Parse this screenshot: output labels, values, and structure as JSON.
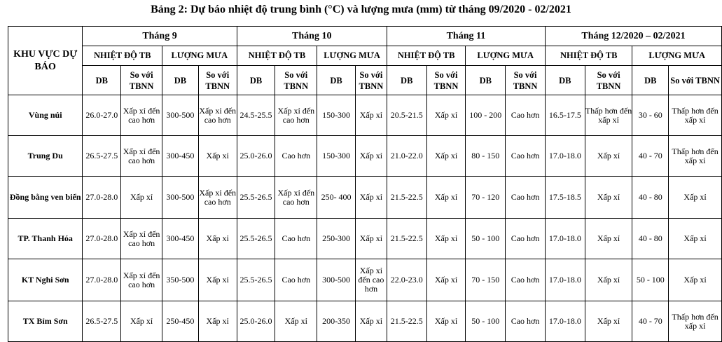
{
  "title": "Bảng 2: Dự báo nhiệt độ trung bình (°C) và lượng mưa (mm) từ tháng 09/2020 - 02/2021",
  "headers": {
    "region": "KHU VỰC DỰ BÁO",
    "periods": [
      "Tháng 9",
      "Tháng 10",
      "Tháng 11",
      "Tháng 12/2020 – 02/2021"
    ],
    "temp": "NHIỆT ĐỘ TB",
    "rain": "LƯỢNG MƯA",
    "db": "DB",
    "compare": "So với TBNN"
  },
  "rows": [
    {
      "region": "Vùng núi",
      "cells": [
        "26.0-27.0",
        "Xấp xỉ đến cao hơn",
        "300-500",
        "Xấp xỉ đến cao hơn",
        "24.5-25.5",
        "Xấp xỉ đến cao hơn",
        "150-300",
        "Xấp xỉ",
        "20.5-21.5",
        "Xấp xỉ",
        "100 - 200",
        "Cao hơn",
        "16.5-17.5",
        "Thấp hơn đến xấp xỉ",
        "30 - 60",
        "Thấp hơn đến xấp xỉ"
      ]
    },
    {
      "region": "Trung Du",
      "cells": [
        "26.5-27.5",
        "Xấp xỉ đến cao hơn",
        "300-450",
        "Xấp xỉ",
        "25.0-26.0",
        "Cao hơn",
        "150-300",
        "Xấp xỉ",
        "21.0-22.0",
        "Xấp xỉ",
        "80 - 150",
        "Cao hơn",
        "17.0-18.0",
        "Xấp xỉ",
        "40 - 70",
        "Thấp hơn đến xấp xỉ"
      ]
    },
    {
      "region": "Đồng bằng ven biển",
      "cells": [
        "27.0-28.0",
        "Xấp xỉ",
        "300-500",
        "Xấp xỉ đến cao hơn",
        "25.5-26.5",
        "Xấp xỉ đến cao hơn",
        "250- 400",
        "Xấp xỉ",
        "21.5-22.5",
        "Xấp xỉ",
        "70 - 120",
        "Cao hơn",
        "17.5-18.5",
        "Xấp xỉ",
        "40 - 80",
        "Xấp xỉ"
      ]
    },
    {
      "region": "TP. Thanh Hóa",
      "cells": [
        "27.0-28.0",
        "Xấp xỉ đến cao hơn",
        "300-450",
        "Xấp xỉ",
        "25.5-26.5",
        "Cao hơn",
        "250-300",
        "Xấp xỉ",
        "21.5-22.5",
        "Xấp xỉ",
        "50 - 100",
        "Cao hơn",
        "17.0-18.0",
        "Xấp xỉ",
        "40 - 80",
        "Xấp xỉ"
      ]
    },
    {
      "region": "KT Nghi Sơn",
      "cells": [
        "27.0-28.0",
        "Xấp xỉ đến cao hơn",
        "350-500",
        "Xấp xỉ",
        "25.5-26.5",
        "Cao hơn",
        "300-500",
        "Xấp xỉ đến cao hơn",
        "22.0-23.0",
        "Xấp xỉ",
        "70 - 150",
        "Cao hơn",
        "17.0-18.0",
        "Xấp xỉ",
        "50 - 100",
        "Xấp xỉ"
      ]
    },
    {
      "region": "TX Bỉm Sơn",
      "cells": [
        "26.5-27.5",
        "Xấp xỉ",
        "250-450",
        "Xấp xỉ",
        "25.0-26.0",
        "Xấp xỉ",
        "200-350",
        "Xấp xỉ",
        "21.5-22.5",
        "Xấp xỉ",
        "50 - 100",
        "Cao hơn",
        "17.0-18.0",
        "Xấp xỉ",
        "40 - 70",
        "Thấp hơn đến xấp xỉ"
      ]
    }
  ]
}
